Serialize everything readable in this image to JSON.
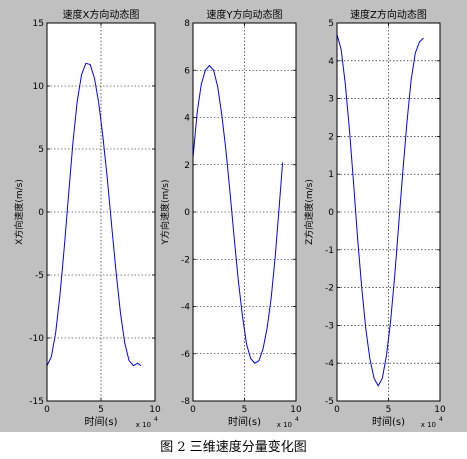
{
  "caption": "图 2  三维速度分量变化图",
  "colors": {
    "figure_bg": "#c0c0c0",
    "axes_bg": "#ffffff",
    "line": "#0000ff",
    "grid": "#000000"
  },
  "chart_data": [
    {
      "type": "line",
      "title": "速度X方向动态图",
      "xlabel": "时间(s)",
      "ylabel": "X方向速度(m/s)",
      "x_exponent_label": "x 10",
      "x_exponent_power": "4",
      "xlim": [
        0,
        10
      ],
      "ylim": [
        -15,
        15
      ],
      "xticks": [
        0,
        5,
        10
      ],
      "xtick_labels": [
        "0",
        "5",
        "10"
      ],
      "yticks": [
        -15,
        -10,
        -5,
        0,
        5,
        10,
        15
      ],
      "ytick_labels": [
        "-15",
        "-10",
        "-5",
        "0",
        "5",
        "10",
        "15"
      ],
      "grid": true,
      "series": [
        {
          "x": [
            0,
            0.4,
            0.8,
            1.2,
            1.6,
            2.0,
            2.4,
            2.8,
            3.2,
            3.6,
            4.0,
            4.4,
            4.8,
            5.2,
            5.6,
            6.0,
            6.4,
            6.8,
            7.2,
            7.6,
            8.0,
            8.4,
            8.7
          ],
          "y": [
            -12.2,
            -11.5,
            -9.6,
            -6.6,
            -2.8,
            1.4,
            5.5,
            8.8,
            10.9,
            11.8,
            11.7,
            10.6,
            8.6,
            5.8,
            2.5,
            -1.2,
            -4.8,
            -8.0,
            -10.4,
            -11.8,
            -12.2,
            -12.0,
            -12.2
          ]
        }
      ]
    },
    {
      "type": "line",
      "title": "速度Y方向动态图",
      "xlabel": "时间(s)",
      "ylabel": "Y方向速度(m/s)",
      "x_exponent_label": "x 10",
      "x_exponent_power": "4",
      "xlim": [
        0,
        10
      ],
      "ylim": [
        -8,
        8
      ],
      "xticks": [
        0,
        5,
        10
      ],
      "xtick_labels": [
        "0",
        "5",
        "10"
      ],
      "yticks": [
        -8,
        -6,
        -4,
        -2,
        0,
        2,
        4,
        6,
        8
      ],
      "ytick_labels": [
        "-8",
        "-6",
        "-4",
        "-2",
        "0",
        "2",
        "4",
        "6",
        "8"
      ],
      "grid": true,
      "series": [
        {
          "x": [
            0,
            0.4,
            0.8,
            1.2,
            1.6,
            2.0,
            2.4,
            2.8,
            3.2,
            3.6,
            4.0,
            4.4,
            4.8,
            5.2,
            5.6,
            6.0,
            6.4,
            6.8,
            7.2,
            7.6,
            8.0,
            8.4,
            8.7
          ],
          "y": [
            2.3,
            4.2,
            5.4,
            6.0,
            6.2,
            6.0,
            5.3,
            4.1,
            2.6,
            0.8,
            -1.1,
            -2.9,
            -4.4,
            -5.6,
            -6.2,
            -6.4,
            -6.3,
            -5.8,
            -4.9,
            -3.6,
            -1.8,
            0.4,
            2.1
          ]
        }
      ]
    },
    {
      "type": "line",
      "title": "速度Z方向动态图",
      "xlabel": "时间(s)",
      "ylabel": "Z方向速度(m/s)",
      "x_exponent_label": "x 10",
      "x_exponent_power": "4",
      "xlim": [
        0,
        10
      ],
      "ylim": [
        -5,
        5
      ],
      "xticks": [
        0,
        5,
        10
      ],
      "xtick_labels": [
        "0",
        "5",
        "10"
      ],
      "yticks": [
        -5,
        -4,
        -3,
        -2,
        -1,
        0,
        1,
        2,
        3,
        4,
        5
      ],
      "ytick_labels": [
        "-5",
        "-4",
        "-3",
        "-2",
        "-1",
        "0",
        "1",
        "2",
        "3",
        "4",
        "5"
      ],
      "grid": true,
      "series": [
        {
          "x": [
            0,
            0.4,
            0.8,
            1.2,
            1.6,
            2.0,
            2.4,
            2.8,
            3.2,
            3.6,
            4.0,
            4.4,
            4.8,
            5.2,
            5.6,
            6.0,
            6.4,
            6.8,
            7.2,
            7.6,
            8.0,
            8.4
          ],
          "y": [
            4.7,
            4.3,
            3.4,
            2.2,
            0.8,
            -0.7,
            -2.0,
            -3.1,
            -3.9,
            -4.4,
            -4.6,
            -4.4,
            -3.8,
            -2.9,
            -1.7,
            -0.3,
            1.1,
            2.4,
            3.5,
            4.2,
            4.5,
            4.6
          ]
        }
      ]
    }
  ]
}
